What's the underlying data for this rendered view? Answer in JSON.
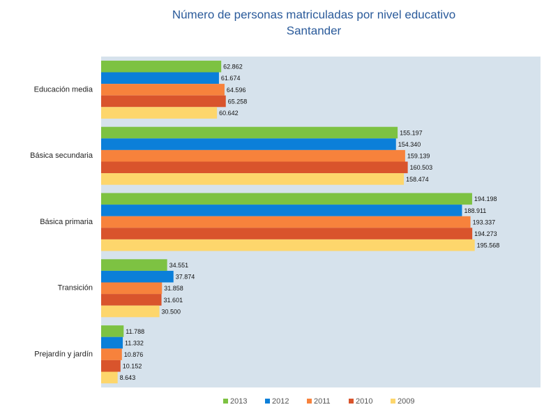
{
  "chart_data": {
    "type": "bar",
    "orientation": "horizontal",
    "title": "Número de personas matriculadas por nivel educativo",
    "subtitle": "Santander",
    "categories": [
      "Educación media",
      "Básica secundaria",
      "Básica primaria",
      "Transición",
      "Prejardín y jardín"
    ],
    "series": [
      {
        "name": "2013",
        "color": "#7dc242",
        "values": [
          62862,
          155197,
          194198,
          34551,
          11788
        ],
        "value_labels": [
          "62.862",
          "155.197",
          "194.198",
          "34.551",
          "11.788"
        ]
      },
      {
        "name": "2012",
        "color": "#0b7fd9",
        "values": [
          61674,
          154340,
          188911,
          37874,
          11332
        ],
        "value_labels": [
          "61.674",
          "154.340",
          "188.911",
          "37.874",
          "11.332"
        ]
      },
      {
        "name": "2011",
        "color": "#f7823c",
        "values": [
          64596,
          159139,
          193337,
          31858,
          10876
        ],
        "value_labels": [
          "64.596",
          "159.139",
          "193.337",
          "31.858",
          "10.876"
        ]
      },
      {
        "name": "2010",
        "color": "#d9542c",
        "values": [
          65258,
          160503,
          194273,
          31601,
          10152
        ],
        "value_labels": [
          "65.258",
          "160.503",
          "194.273",
          "31.601",
          "10.152"
        ]
      },
      {
        "name": "2009",
        "color": "#fdd66c",
        "values": [
          60642,
          158474,
          195568,
          30500,
          8643
        ],
        "value_labels": [
          "60.642",
          "158.474",
          "195.568",
          "30.500",
          "8.643"
        ]
      }
    ],
    "xlim": [
      0,
      230000
    ],
    "legend": "bottom"
  }
}
